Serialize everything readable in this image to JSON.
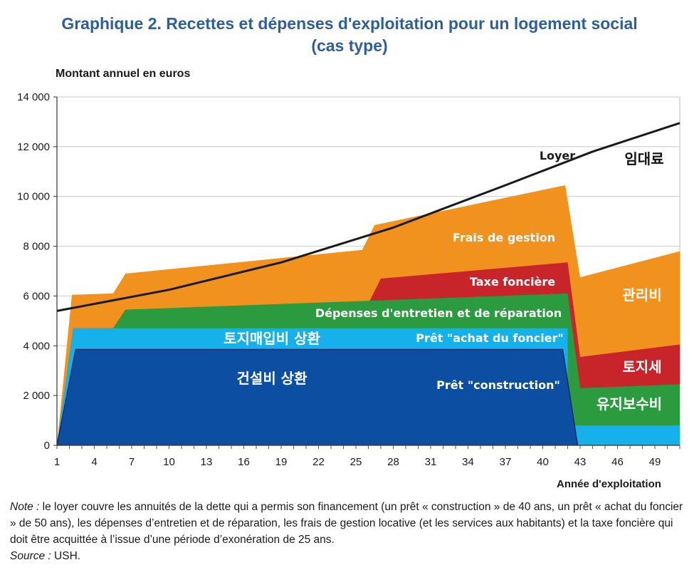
{
  "chart_data": {
    "type": "area",
    "title_line1": "Graphique 2. Recettes et dépenses d'exploitation pour un logement social",
    "title_line2": "(cas type)",
    "ylabel": "Montant annuel en euros",
    "xlabel": "Année d'exploitation",
    "xlim": [
      1,
      51
    ],
    "ylim": [
      0,
      14000
    ],
    "yticks": [
      0,
      2000,
      4000,
      6000,
      8000,
      10000,
      12000,
      14000
    ],
    "ytick_labels": [
      "0",
      "2 000",
      "4 000",
      "6 000",
      "8 000",
      "10 000",
      "12 000",
      "14 000"
    ],
    "xticks": [
      1,
      4,
      7,
      10,
      13,
      16,
      19,
      22,
      25,
      28,
      31,
      34,
      37,
      40,
      43,
      46,
      49
    ],
    "grid": "horizontal",
    "series": [
      {
        "name": "Prêt \"construction\"",
        "kr_label": "건설비 상환",
        "color": "#0b4ea2",
        "points": [
          [
            1,
            0
          ],
          [
            2.5,
            3850
          ],
          [
            41.6,
            3850
          ],
          [
            42.8,
            0
          ]
        ]
      },
      {
        "name": "Prêt \"achat du foncier\"",
        "kr_label": "토지매입비 상환",
        "color": "#16b0ea",
        "points": [
          [
            1,
            0
          ],
          [
            2.3,
            4700
          ],
          [
            42,
            4700
          ],
          [
            42,
            800
          ],
          [
            51,
            800
          ],
          [
            51,
            0
          ]
        ]
      },
      {
        "name": "Dépenses d'entretien et de réparation",
        "kr_label": "유지보수비",
        "color": "#2c9a3f",
        "points": [
          [
            1,
            0
          ],
          [
            2.3,
            4700
          ],
          [
            5.5,
            4700
          ],
          [
            6.5,
            5450
          ],
          [
            42,
            6100
          ],
          [
            43,
            2300
          ],
          [
            51,
            2450
          ],
          [
            51,
            0
          ]
        ]
      },
      {
        "name": "Taxe foncière",
        "kr_label": "토지세",
        "color": "#c8252b",
        "points": [
          [
            1,
            0
          ],
          [
            2.3,
            4700
          ],
          [
            5.5,
            4700
          ],
          [
            6.5,
            5450
          ],
          [
            26,
            5700
          ],
          [
            27,
            6700
          ],
          [
            42,
            7350
          ],
          [
            43,
            3550
          ],
          [
            51,
            4050
          ],
          [
            51,
            0
          ]
        ]
      },
      {
        "name": "Frais de gestion",
        "kr_label": "관리비",
        "color": "#f1921f",
        "points": [
          [
            1,
            0
          ],
          [
            2.2,
            6050
          ],
          [
            5.5,
            6100
          ],
          [
            6.5,
            6900
          ],
          [
            25.5,
            7850
          ],
          [
            26.5,
            8850
          ],
          [
            41.8,
            10450
          ],
          [
            43,
            6750
          ],
          [
            51,
            7800
          ],
          [
            51,
            0
          ]
        ]
      },
      {
        "name": "Loyer",
        "kr_label": "임대료",
        "color": "#1a1a1a",
        "type": "line",
        "points": [
          [
            1,
            5400
          ],
          [
            10,
            6250
          ],
          [
            19,
            7350
          ],
          [
            28,
            8750
          ],
          [
            37,
            10450
          ],
          [
            44,
            11800
          ],
          [
            51,
            12950
          ]
        ]
      }
    ]
  },
  "note": {
    "label": "Note :",
    "text": " le loyer couvre les annuités de la dette qui a permis son financement (un prêt « construction » de 40 ans, un prêt « achat du foncier » de 50 ans), les dépenses d’entretien et de réparation, les frais de gestion locative (et les services aux habitants) et la taxe foncière qui doit être acquittée à l’issue d’une période d’exonération de 25 ans.",
    "source_label": "Source :",
    "source_text": " USH."
  }
}
